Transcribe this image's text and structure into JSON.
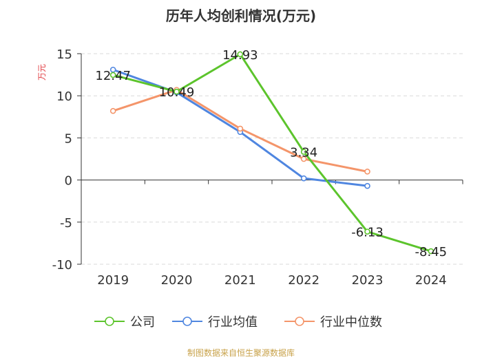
{
  "chart_data": {
    "type": "line",
    "title": "历年人均创利情况(万元)",
    "ylabel": "万元",
    "xlabel": "",
    "categories": [
      "2019",
      "2020",
      "2021",
      "2022",
      "2023",
      "2024"
    ],
    "ylim": [
      -10,
      15
    ],
    "yticks": [
      15,
      10,
      5,
      0,
      -5,
      -10
    ],
    "grid": true,
    "legend_position": "bottom",
    "series": [
      {
        "name": "公司",
        "color": "#5cc42c",
        "values": [
          12.47,
          10.49,
          14.93,
          3.34,
          -6.13,
          -8.45
        ],
        "labels": [
          "12.47",
          "10.49",
          "14.93",
          "3.34",
          "-6.13",
          "-8.45"
        ]
      },
      {
        "name": "行业均值",
        "color": "#4f86e0",
        "values": [
          13.1,
          10.4,
          5.7,
          0.2,
          -0.7,
          null
        ]
      },
      {
        "name": "行业中位数",
        "color": "#f4956a",
        "values": [
          8.2,
          10.7,
          6.1,
          2.5,
          1.0,
          null
        ]
      }
    ],
    "source": "制图数据来自恒生聚源数据库"
  }
}
